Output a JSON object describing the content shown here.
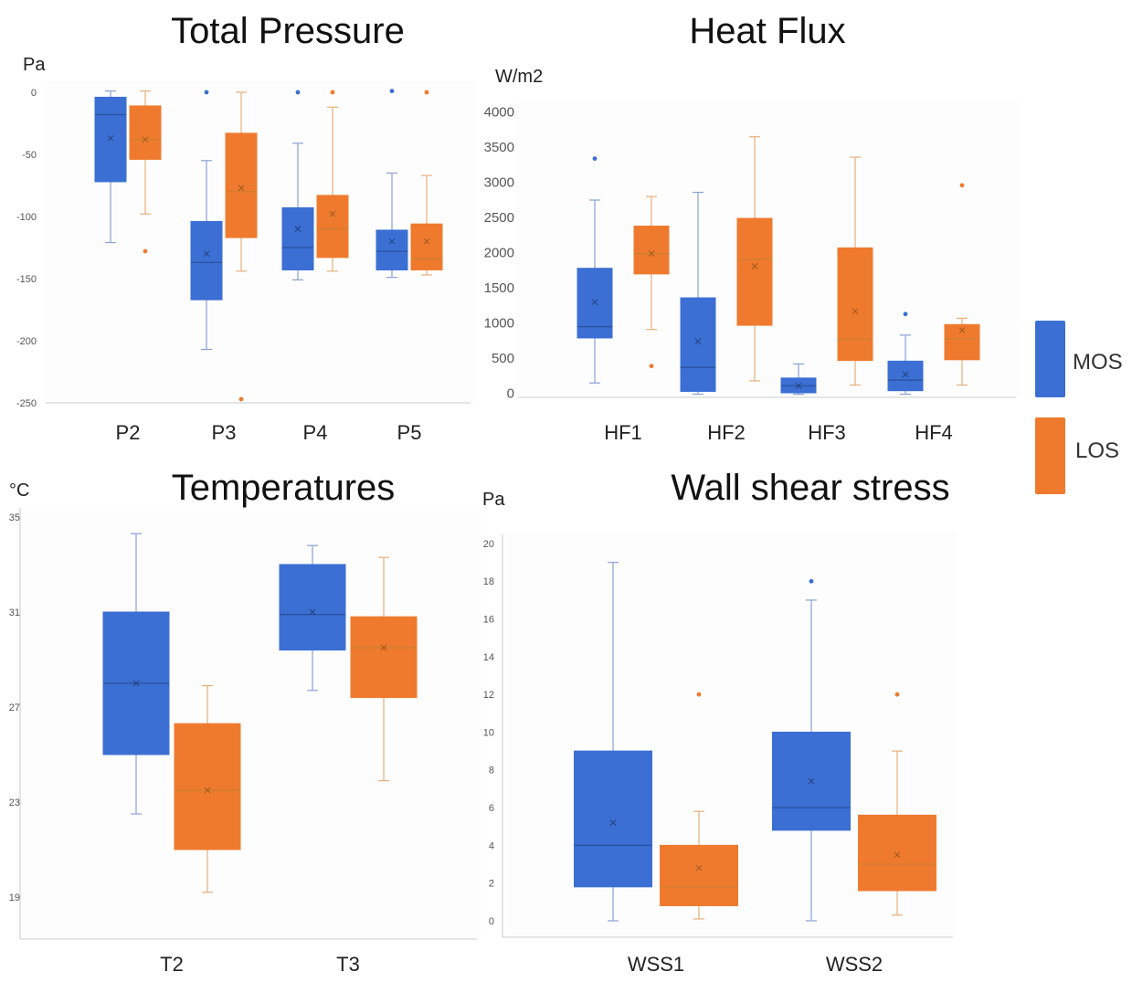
{
  "colors": {
    "MOS": "#3b6fd3",
    "LOS": "#ef7a2e",
    "axis": "#cccccc",
    "text": "#333333"
  },
  "legend": [
    {
      "name": "MOS",
      "color": "#3b6fd3"
    },
    {
      "name": "LOS",
      "color": "#ef7a2e"
    }
  ],
  "chart_data": [
    {
      "type": "box",
      "title": "Total Pressure",
      "ylabel": "Pa",
      "ylim": [
        -250,
        0
      ],
      "yticks": [
        0,
        -50,
        -100,
        -150,
        -200,
        -250
      ],
      "yticks_labels": [
        "0",
        "-50",
        "-100",
        "-150",
        "-200",
        "-250"
      ],
      "categories": [
        "P2",
        "P3",
        "P4",
        "P5"
      ],
      "series": [
        {
          "name": "MOS",
          "boxes": [
            {
              "min": -121,
              "q1": -72,
              "median": -18,
              "q3": -4,
              "max": 1,
              "mean": -37,
              "outliers": []
            },
            {
              "min": -207,
              "q1": -167,
              "median": -137,
              "q3": -104,
              "max": -55,
              "mean": -130,
              "outliers": [
                0
              ]
            },
            {
              "min": -151,
              "q1": -143,
              "median": -125,
              "q3": -93,
              "max": -41,
              "mean": -110,
              "outliers": [
                0
              ]
            },
            {
              "min": -149,
              "q1": -143,
              "median": -128,
              "q3": -111,
              "max": -65,
              "mean": -120,
              "outliers": [
                1
              ]
            }
          ]
        },
        {
          "name": "LOS",
          "boxes": [
            {
              "min": -98,
              "q1": -54,
              "median": -38,
              "q3": -11,
              "max": 1,
              "mean": -38,
              "outliers": [
                -128
              ]
            },
            {
              "min": -144,
              "q1": -117,
              "median": -80,
              "q3": -33,
              "max": 0,
              "mean": -77,
              "outliers": [
                -247
              ]
            },
            {
              "min": -144,
              "q1": -133,
              "median": -110,
              "q3": -83,
              "max": -12,
              "mean": -98,
              "outliers": [
                0
              ]
            },
            {
              "min": -147,
              "q1": -143,
              "median": -134,
              "q3": -106,
              "max": -67,
              "mean": -120,
              "outliers": [
                0
              ]
            }
          ]
        }
      ]
    },
    {
      "type": "box",
      "title": "Heat Flux",
      "ylabel": "W/m2",
      "ylim": [
        0,
        4000
      ],
      "yticks": [
        0,
        500,
        1000,
        1500,
        2000,
        2500,
        3000,
        3500,
        4000
      ],
      "yticks_labels": [
        "0",
        "500",
        "1000",
        "1500",
        "2000",
        "2500",
        "3000",
        "3500",
        "4000"
      ],
      "categories": [
        "HF1",
        "HF2",
        "HF3",
        "HF4"
      ],
      "series": [
        {
          "name": "MOS",
          "boxes": [
            {
              "min": 140,
              "q1": 780,
              "median": 940,
              "q3": 1770,
              "max": 2740,
              "mean": 1290,
              "outliers": [
                3330
              ]
            },
            {
              "min": -20,
              "q1": 20,
              "median": 360,
              "q3": 1350,
              "max": 2850,
              "mean": 730,
              "outliers": []
            },
            {
              "min": -20,
              "q1": 0,
              "median": 100,
              "q3": 210,
              "max": 410,
              "mean": 100,
              "outliers": []
            },
            {
              "min": -20,
              "q1": 30,
              "median": 180,
              "q3": 450,
              "max": 820,
              "mean": 260,
              "outliers": [
                1120
              ]
            }
          ]
        },
        {
          "name": "LOS",
          "boxes": [
            {
              "min": 900,
              "q1": 1690,
              "median": 1980,
              "q3": 2370,
              "max": 2790,
              "mean": 1980,
              "outliers": [
                380
              ]
            },
            {
              "min": 170,
              "q1": 960,
              "median": 1900,
              "q3": 2480,
              "max": 3640,
              "mean": 1800,
              "outliers": []
            },
            {
              "min": 110,
              "q1": 460,
              "median": 760,
              "q3": 2060,
              "max": 3350,
              "mean": 1160,
              "outliers": []
            },
            {
              "min": 110,
              "q1": 470,
              "median": 770,
              "q3": 970,
              "max": 1060,
              "mean": 890,
              "outliers": [
                2950
              ]
            }
          ]
        }
      ]
    },
    {
      "type": "box",
      "title": "Temperatures",
      "ylabel": "°C",
      "ylim": [
        19,
        35
      ],
      "yticks": [
        19,
        23,
        27,
        31,
        35
      ],
      "yticks_labels": [
        "19",
        "23",
        "27",
        "31",
        "35"
      ],
      "categories": [
        "T2",
        "T3"
      ],
      "series": [
        {
          "name": "MOS",
          "boxes": [
            {
              "min": 22.5,
              "q1": 25.0,
              "median": 28.0,
              "q3": 31.0,
              "max": 34.3,
              "mean": 28.0,
              "outliers": []
            },
            {
              "min": 27.7,
              "q1": 29.4,
              "median": 30.9,
              "q3": 33.0,
              "max": 33.8,
              "mean": 31.0,
              "outliers": []
            }
          ]
        },
        {
          "name": "LOS",
          "boxes": [
            {
              "min": 19.2,
              "q1": 21.0,
              "median": 23.5,
              "q3": 26.3,
              "max": 27.9,
              "mean": 23.5,
              "outliers": []
            },
            {
              "min": 23.9,
              "q1": 27.4,
              "median": 29.5,
              "q3": 30.8,
              "max": 33.3,
              "mean": 29.5,
              "outliers": []
            }
          ]
        }
      ]
    },
    {
      "type": "box",
      "title": "Wall shear stress",
      "ylabel": "Pa",
      "ylim": [
        0,
        20
      ],
      "yticks": [
        0,
        2,
        4,
        6,
        8,
        10,
        12,
        14,
        16,
        18,
        20
      ],
      "yticks_labels": [
        "0",
        "2",
        "4",
        "6",
        "8",
        "10",
        "12",
        "14",
        "16",
        "18",
        "20"
      ],
      "categories": [
        "WSS1",
        "WSS2"
      ],
      "series": [
        {
          "name": "MOS",
          "boxes": [
            {
              "min": 0,
              "q1": 1.8,
              "median": 4.0,
              "q3": 9.0,
              "max": 19.0,
              "mean": 5.2,
              "outliers": []
            },
            {
              "min": 0,
              "q1": 4.8,
              "median": 6.0,
              "q3": 10.0,
              "max": 17.0,
              "mean": 7.4,
              "outliers": [
                18.0
              ]
            }
          ]
        },
        {
          "name": "LOS",
          "boxes": [
            {
              "min": 0.1,
              "q1": 0.8,
              "median": 1.8,
              "q3": 4.0,
              "max": 5.8,
              "mean": 2.8,
              "outliers": [
                12.0
              ]
            },
            {
              "min": 0.3,
              "q1": 1.6,
              "median": 3.0,
              "q3": 5.6,
              "max": 9.0,
              "mean": 3.5,
              "outliers": [
                12.0
              ]
            }
          ]
        }
      ]
    }
  ]
}
